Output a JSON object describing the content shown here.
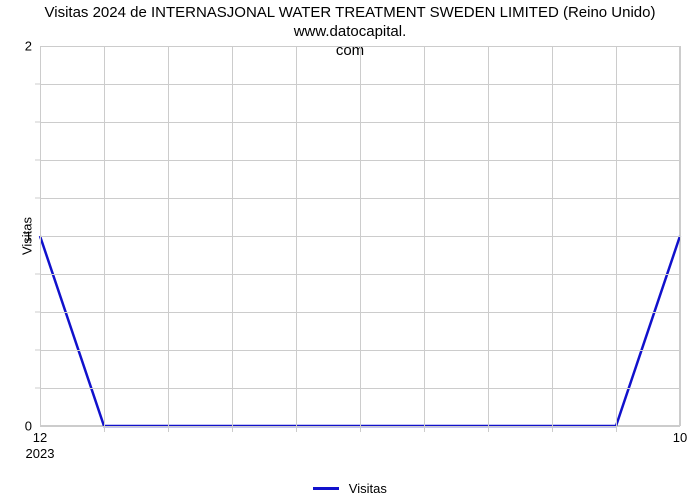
{
  "chart": {
    "type": "line",
    "title": "Visitas 2024 de INTERNASJONAL WATER TREATMENT SWEDEN LIMITED (Reino Unido) www.datocapital.\ncom",
    "title_fontsize": 15,
    "title_color": "#000000",
    "background_color": "#ffffff",
    "grid_color": "#cccccc",
    "axis_label_fontsize": 13,
    "y_axis_title": "Visitas",
    "x": {
      "domain_min": 12,
      "domain_max": 22,
      "ticks_major": [
        12,
        22
      ],
      "tick_labels_major": [
        "12",
        "10"
      ],
      "ticks_minor": [
        13,
        14,
        15,
        16,
        17,
        18,
        19,
        20,
        21
      ],
      "grid_at": [
        12,
        13,
        14,
        15,
        16,
        17,
        18,
        19,
        20,
        21,
        22
      ],
      "sub_label_at": 12,
      "sub_label_text": "2023"
    },
    "y": {
      "domain_min": 0,
      "domain_max": 2,
      "ticks_major": [
        0,
        1,
        2
      ],
      "tick_labels_major": [
        "0",
        "1",
        "2"
      ],
      "ticks_minor": [
        0.2,
        0.4,
        0.6,
        0.8,
        1.2,
        1.4,
        1.6,
        1.8
      ],
      "grid_at": [
        0,
        0.2,
        0.4,
        0.6,
        0.8,
        1.0,
        1.2,
        1.4,
        1.6,
        1.8,
        2.0
      ]
    },
    "series": {
      "name": "Visitas",
      "color": "#1111cc",
      "line_width": 2.5,
      "points_x": [
        12,
        13,
        14,
        15,
        16,
        17,
        18,
        19,
        20,
        21,
        22
      ],
      "points_y": [
        1,
        0,
        0,
        0,
        0,
        0,
        0,
        0,
        0,
        0,
        1
      ]
    },
    "legend": {
      "label": "Visitas",
      "swatch_color": "#1111cc"
    }
  }
}
